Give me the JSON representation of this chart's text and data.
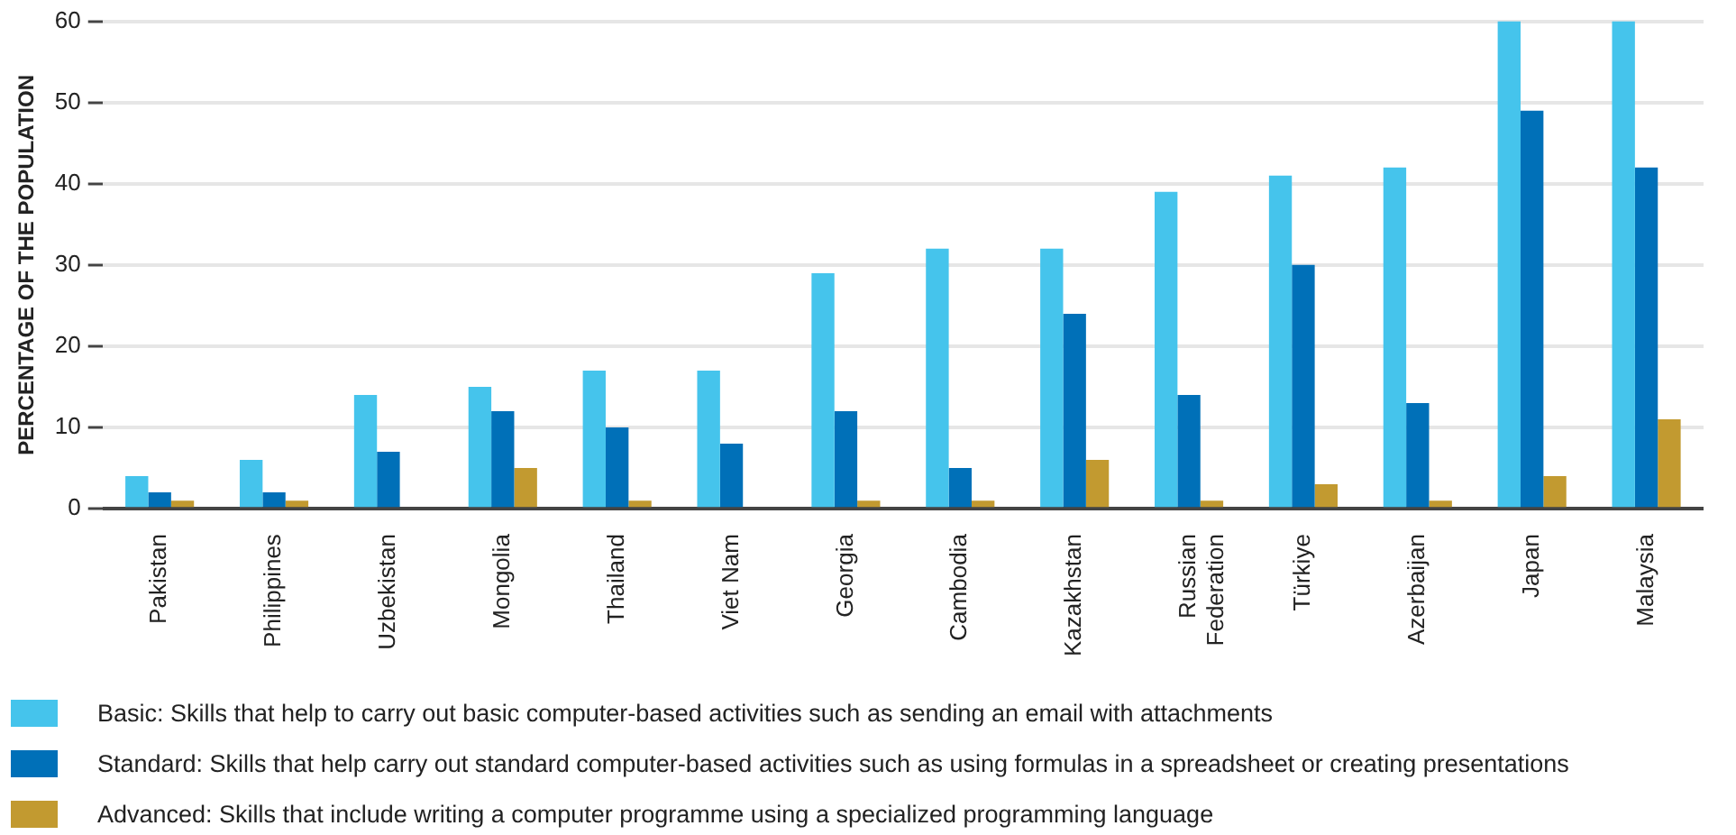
{
  "chart_data": {
    "type": "bar",
    "ylabel": "PERCENTAGE OF THE POPULATION",
    "categories": [
      "Pakistan",
      "Philippines",
      "Uzbekistan",
      "Mongolia",
      "Thailand",
      "Viet Nam",
      "Georgia",
      "Cambodia",
      "Kazakhstan",
      "Russian Federation",
      "Türkiye",
      "Azerbaijan",
      "Japan",
      "Malaysia"
    ],
    "series": [
      {
        "name": "Basic: Skills that help to carry out basic computer-based activities such as sending an email with attachments",
        "color": "#45c4ec",
        "values": [
          4,
          6,
          14,
          15,
          17,
          17,
          29,
          32,
          32,
          39,
          41,
          42,
          60,
          60
        ]
      },
      {
        "name": "Standard: Skills that help carry out standard computer-based activities such as using formulas in a spreadsheet or creating presentations",
        "color": "#0070b8",
        "values": [
          2,
          2,
          7,
          12,
          10,
          8,
          12,
          5,
          24,
          14,
          30,
          13,
          49,
          42
        ]
      },
      {
        "name": "Advanced: Skills that include writing a computer programme using a specialized programming language",
        "color": "#c29a30",
        "values": [
          1,
          1,
          null,
          5,
          1,
          null,
          1,
          1,
          6,
          1,
          3,
          1,
          4,
          11
        ]
      }
    ],
    "ylim": [
      0,
      60
    ],
    "yticks": [
      0,
      10,
      20,
      30,
      40,
      50,
      60
    ],
    "grid": "y",
    "legend": "bottom"
  }
}
